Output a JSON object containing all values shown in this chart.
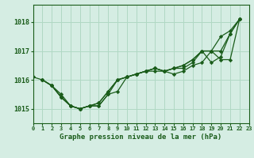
{
  "title": "Graphe pression niveau de la mer (hPa)",
  "bg_color": "#d5ede3",
  "grid_color": "#b0d8c4",
  "line_color": "#1a5c1a",
  "xlim": [
    0,
    23
  ],
  "ylim": [
    1014.5,
    1018.6
  ],
  "yticks": [
    1015,
    1016,
    1017,
    1018
  ],
  "xtick_labels": [
    "0",
    "1",
    "2",
    "3",
    "4",
    "5",
    "6",
    "7",
    "8",
    "9",
    "10",
    "11",
    "12",
    "13",
    "14",
    "15",
    "16",
    "17",
    "18",
    "19",
    "20",
    "21",
    "22",
    "23"
  ],
  "s0_x": [
    0,
    1,
    2,
    3,
    4,
    5,
    6,
    7,
    8,
    9,
    10,
    11,
    12,
    13,
    14,
    15,
    16,
    17,
    18,
    19,
    20,
    21,
    22
  ],
  "s0_y": [
    1016.1,
    1016.0,
    1015.8,
    1015.5,
    1015.1,
    1015.0,
    1015.1,
    1015.1,
    1015.5,
    1015.6,
    1016.1,
    1016.2,
    1016.3,
    1016.3,
    1016.3,
    1016.2,
    1016.3,
    1016.5,
    1016.6,
    1017.0,
    1017.5,
    1017.7,
    1018.1
  ],
  "s1_x": [
    1,
    2,
    3,
    4,
    5,
    6,
    7,
    8,
    9,
    10,
    11,
    12,
    13,
    14,
    15,
    16,
    17,
    18,
    19,
    20,
    21,
    22
  ],
  "s1_y": [
    1016.0,
    1015.8,
    1015.4,
    1015.1,
    1015.0,
    1015.1,
    1015.1,
    1015.5,
    1016.0,
    1016.1,
    1016.2,
    1016.3,
    1016.4,
    1016.3,
    1016.4,
    1016.4,
    1016.6,
    1017.0,
    1017.0,
    1016.7,
    1016.7,
    1018.1
  ],
  "s2_x": [
    1,
    2,
    3,
    4,
    5,
    6,
    7,
    8,
    9,
    10,
    11,
    12,
    13,
    14,
    15,
    16,
    17,
    18,
    19,
    20,
    21,
    22
  ],
  "s2_y": [
    1016.0,
    1015.8,
    1015.4,
    1015.1,
    1015.0,
    1015.1,
    1015.2,
    1015.6,
    1016.0,
    1016.1,
    1016.2,
    1016.3,
    1016.4,
    1016.3,
    1016.4,
    1016.5,
    1016.7,
    1017.0,
    1016.6,
    1016.8,
    1017.6,
    1018.1
  ],
  "s3_x": [
    1,
    2,
    3,
    4,
    5,
    6,
    7,
    8,
    9,
    10,
    11,
    12,
    13,
    14,
    15,
    16,
    17,
    18,
    19,
    20,
    21,
    22
  ],
  "s3_y": [
    1016.0,
    1015.8,
    1015.4,
    1015.1,
    1015.0,
    1015.1,
    1015.2,
    1015.6,
    1016.0,
    1016.1,
    1016.2,
    1016.3,
    1016.4,
    1016.3,
    1016.4,
    1016.5,
    1016.7,
    1017.0,
    1017.0,
    1017.0,
    1017.6,
    1018.1
  ]
}
